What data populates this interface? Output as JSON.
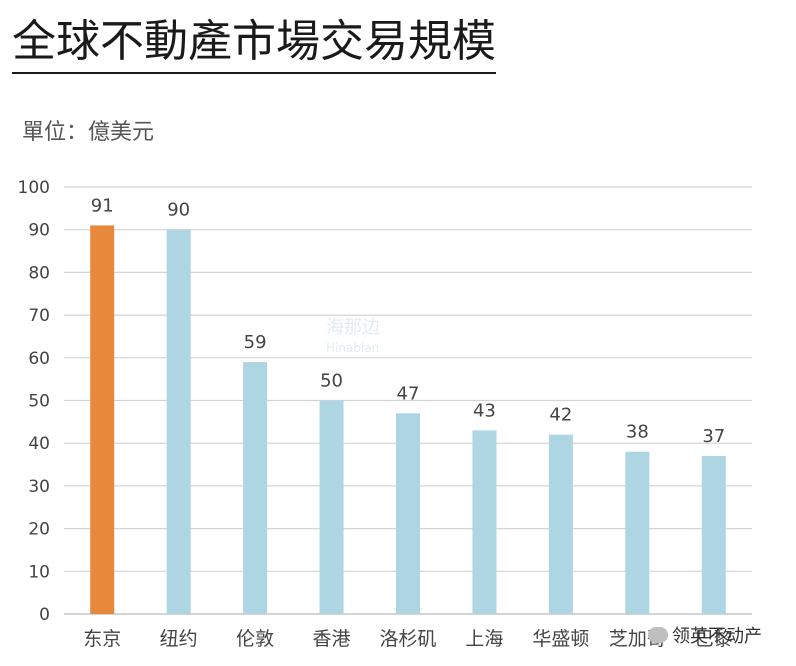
{
  "title": "全球不動產市場交易規模",
  "unit_label": "單位：億美元",
  "source": "领英不动产",
  "watermark": {
    "line1": "海那边",
    "line2": "Hinabian"
  },
  "colors": {
    "highlight": "#E8883A",
    "bar": "#ADD5E2",
    "grid": "#D4D4D4",
    "axis": "#BBBBBB"
  },
  "chart_data": {
    "type": "bar",
    "title": "全球不動產市場交易規模",
    "ylabel": "單位：億美元",
    "xlabel": "",
    "ylim": [
      0,
      100
    ],
    "yticks": [
      0,
      10,
      20,
      30,
      40,
      50,
      60,
      70,
      80,
      90,
      100
    ],
    "grid": true,
    "categories": [
      "东京",
      "纽约",
      "伦敦",
      "香港",
      "洛杉矶",
      "上海",
      "华盛顿",
      "芝加哥",
      "巴黎"
    ],
    "values": [
      91,
      90,
      59,
      50,
      47,
      43,
      42,
      38,
      37
    ],
    "highlight_index": 0
  }
}
